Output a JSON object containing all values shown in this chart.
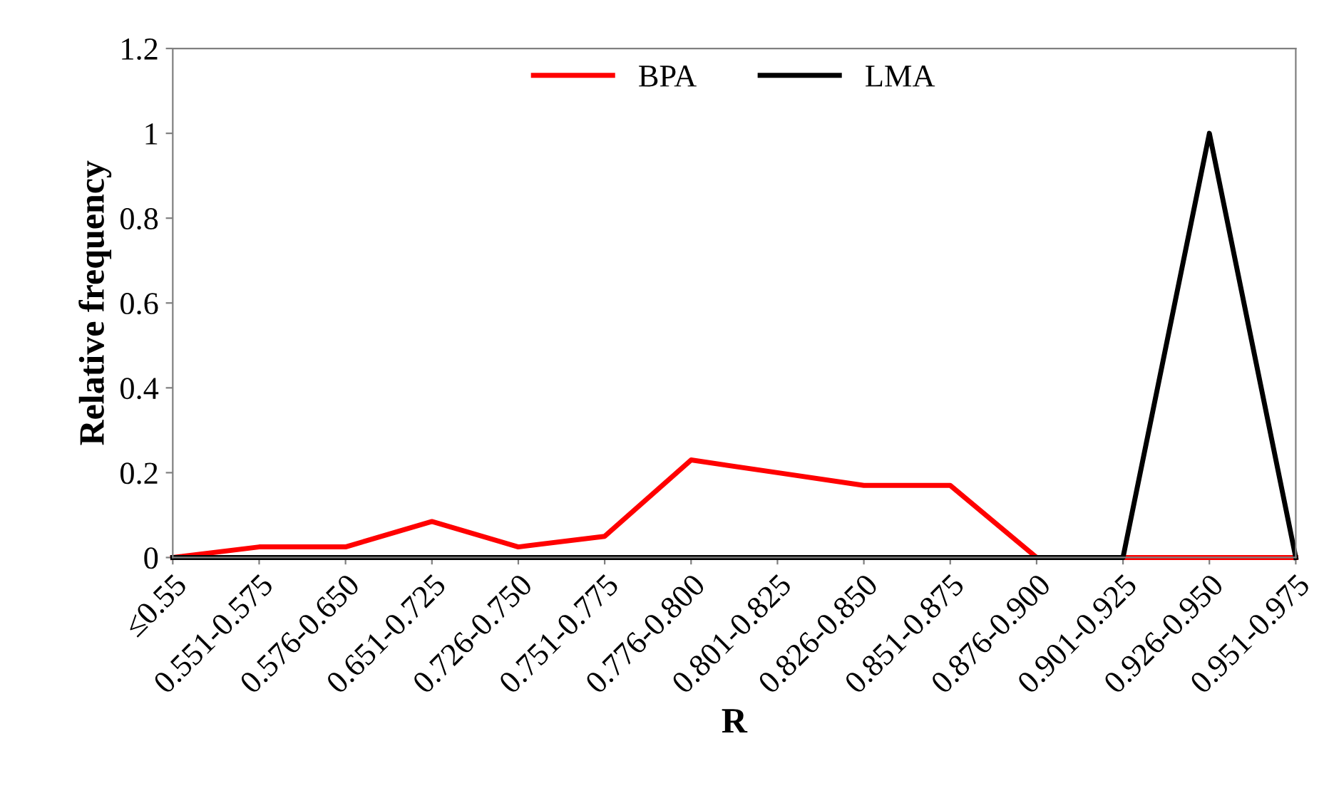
{
  "chart_data": {
    "type": "line",
    "xlabel": "R",
    "ylabel": "Relative frequency",
    "categories": [
      "≤0.55",
      "0.551-0.575",
      "0.576-0.650",
      "0.651-0.725",
      "0.726-0.750",
      "0.751-0.775",
      "0.776-0.800",
      "0.801-0.825",
      "0.826-0.850",
      "0.851-0.875",
      "0.876-0.900",
      "0.901-0.925",
      "0.926-0.950",
      "0.951-0.975"
    ],
    "series": [
      {
        "name": "BPA",
        "color": "#ff0000",
        "values": [
          0,
          0.025,
          0.025,
          0.085,
          0.025,
          0.05,
          0.23,
          0.2,
          0.17,
          0.17,
          0,
          0,
          0,
          0
        ]
      },
      {
        "name": "LMA",
        "color": "#000000",
        "values": [
          0,
          0,
          0,
          0,
          0,
          0,
          0,
          0,
          0,
          0,
          0,
          0,
          1,
          0
        ]
      }
    ],
    "ylim": [
      0,
      1.2
    ],
    "yticks": [
      0,
      0.2,
      0.4,
      0.6,
      0.8,
      1,
      1.2
    ],
    "grid": false,
    "legend": "top",
    "marker": "none",
    "line_style": "solid"
  }
}
